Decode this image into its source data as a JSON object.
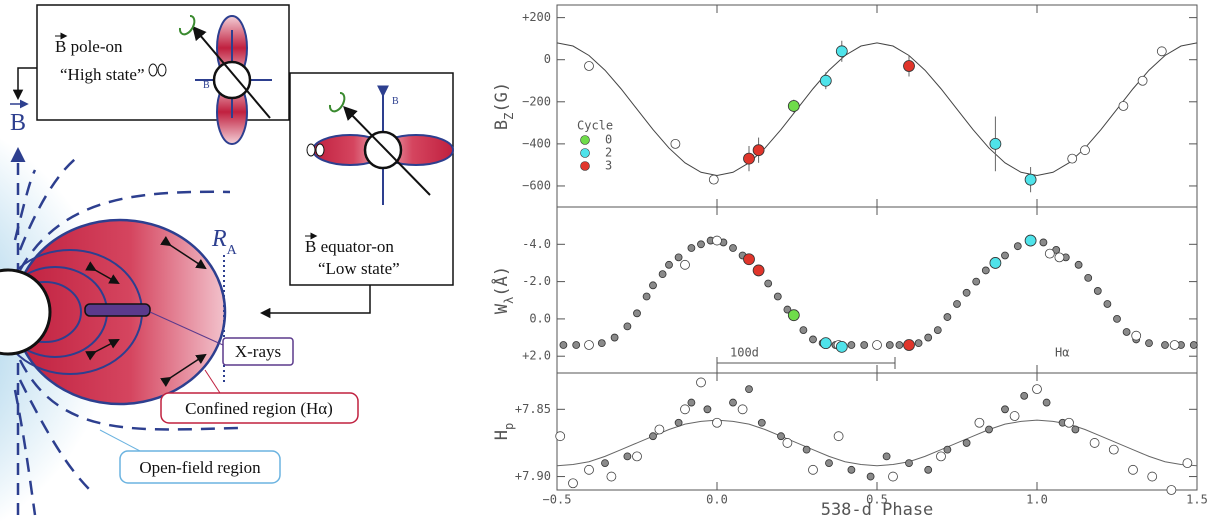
{
  "diagram": {
    "pole_on": {
      "label": "B pole-on",
      "state": "“High state”"
    },
    "equator_on": {
      "label": "B equator-on",
      "state": "“Low state”"
    },
    "field_symbol": "B",
    "alfven_radius": {
      "symbol": "R",
      "sub": "A"
    },
    "xrays": "X-rays",
    "confined": "Confined region (Hα)",
    "open_field": "Open-field region"
  },
  "chart_data": [
    {
      "type": "scatter",
      "ylabel": [
        "B",
        "Z",
        "(G)"
      ],
      "xlim": [
        -0.5,
        1.5
      ],
      "xticks": [
        -0.5,
        0,
        0.5,
        1,
        1.5
      ],
      "ylim": [
        -700,
        260
      ],
      "yticks": [
        {
          "value": 200,
          "label": "+200"
        },
        {
          "value": 0,
          "label": "0"
        },
        {
          "value": -200,
          "label": "−200"
        },
        {
          "value": -400,
          "label": "−400"
        },
        {
          "value": -600,
          "label": "−600"
        }
      ],
      "legend": "center left",
      "legend_title": "Cycle",
      "series": [
        {
          "style": "line",
          "color": "#444444",
          "x": [
            -0.5,
            -0.45,
            -0.4,
            -0.35,
            -0.3,
            -0.25,
            -0.2,
            -0.15,
            -0.1,
            -0.05,
            0,
            0.05,
            0.1,
            0.15,
            0.2,
            0.25,
            0.3,
            0.35,
            0.4,
            0.45,
            0.5,
            0.55,
            0.6,
            0.65,
            0.7,
            0.75,
            0.8,
            0.85,
            0.9,
            0.95,
            1,
            1.05,
            1.1,
            1.15,
            1.2,
            1.25,
            1.3,
            1.35,
            1.4,
            1.45,
            1.5
          ],
          "values": [
            80,
            65,
            20,
            -50,
            -138,
            -235,
            -332,
            -420,
            -490,
            -535,
            -550,
            -535,
            -490,
            -420,
            -332,
            -235,
            -138,
            -50,
            20,
            65,
            80,
            65,
            20,
            -50,
            -138,
            -235,
            -332,
            -420,
            -490,
            -535,
            -550,
            -535,
            -490,
            -420,
            -332,
            -235,
            -138,
            -50,
            20,
            65,
            80
          ]
        },
        {
          "style": "open",
          "color": "#ffffff",
          "x": [
            -0.4,
            -0.13,
            -0.01,
            1.11,
            1.15,
            1.27,
            1.33,
            1.39
          ],
          "values": [
            -30,
            -400,
            -570,
            -470,
            -430,
            -220,
            -100,
            40
          ]
        },
        {
          "name": "0",
          "style": "filled",
          "color": "#6fdc4a",
          "x": [
            0.24
          ],
          "values": [
            -220
          ],
          "errors": [
            30
          ]
        },
        {
          "name": "2",
          "style": "filled",
          "color": "#4fe3ea",
          "x": [
            0.34,
            0.39,
            0.87,
            0.98
          ],
          "values": [
            -100,
            40,
            -400,
            -570
          ],
          "errors": [
            40,
            50,
            130,
            60
          ]
        },
        {
          "name": "3",
          "style": "filled",
          "color": "#e0352b",
          "x": [
            0.1,
            0.13,
            0.6
          ],
          "values": [
            -470,
            -430,
            -30
          ],
          "errors": [
            60,
            60,
            50
          ]
        }
      ]
    },
    {
      "type": "scatter",
      "ylabel": [
        "W",
        "λ",
        "(Å)"
      ],
      "xlim": [
        -0.5,
        1.5
      ],
      "xticks": [
        -0.5,
        0,
        0.5,
        1,
        1.5
      ],
      "ylim": [
        2.9,
        -6.0
      ],
      "yticks": [
        {
          "value": -4,
          "label": "-4.0"
        },
        {
          "value": -2,
          "label": "-2.0"
        },
        {
          "value": 0,
          "label": "0.0"
        },
        {
          "value": 2,
          "label": "+2.0"
        }
      ],
      "annotations": [
        "100d",
        "Hα"
      ],
      "series": [
        {
          "style": "filled",
          "color": "#8a8a8a",
          "x": [
            -0.48,
            -0.44,
            -0.4,
            -0.36,
            -0.32,
            -0.28,
            -0.25,
            -0.22,
            -0.2,
            -0.17,
            -0.15,
            -0.12,
            -0.08,
            -0.05,
            -0.02,
            0.02,
            0.05,
            0.08,
            0.16,
            0.19,
            0.22,
            0.27,
            0.3,
            0.33,
            0.37,
            0.42,
            0.46,
            0.5,
            0.54,
            0.57,
            0.63,
            0.66,
            0.69,
            0.72,
            0.75,
            0.78,
            0.81,
            0.84,
            0.9,
            0.94,
            1.02,
            1.06,
            1.09,
            1.13,
            1.16,
            1.19,
            1.22,
            1.25,
            1.28,
            1.31,
            1.35,
            1.4,
            1.45,
            1.49
          ],
          "values": [
            1.4,
            1.4,
            1.4,
            1.3,
            1.0,
            0.4,
            -0.3,
            -1.2,
            -1.8,
            -2.4,
            -2.9,
            -3.3,
            -3.8,
            -4.0,
            -4.2,
            -4.1,
            -3.8,
            -3.4,
            -1.9,
            -1.2,
            -0.5,
            0.6,
            1.1,
            1.3,
            1.4,
            1.4,
            1.4,
            1.4,
            1.4,
            1.4,
            1.3,
            1.0,
            0.6,
            -0.1,
            -0.8,
            -1.4,
            -2.0,
            -2.6,
            -3.4,
            -3.9,
            -4.1,
            -3.7,
            -3.3,
            -2.9,
            -2.2,
            -1.5,
            -0.8,
            0.0,
            0.7,
            1.1,
            1.3,
            1.4,
            1.4,
            1.4
          ]
        },
        {
          "style": "open",
          "color": "#ffffff",
          "x": [
            -0.4,
            -0.1,
            0.0,
            0.38,
            0.5,
            1.04,
            1.07,
            1.31,
            1.43
          ],
          "values": [
            1.4,
            -2.9,
            -4.2,
            1.4,
            1.4,
            -3.5,
            -3.3,
            0.9,
            1.4
          ]
        },
        {
          "style": "filled",
          "color": "#6fdc4a",
          "x": [
            0.24
          ],
          "values": [
            -0.2
          ]
        },
        {
          "style": "filled",
          "color": "#4fe3ea",
          "x": [
            0.34,
            0.39,
            0.87,
            0.98
          ],
          "values": [
            1.3,
            1.5,
            -3.0,
            -4.2
          ]
        },
        {
          "style": "filled",
          "color": "#e0352b",
          "x": [
            0.1,
            0.13,
            0.6
          ],
          "values": [
            -3.2,
            -2.6,
            1.4
          ]
        }
      ]
    },
    {
      "type": "scatter",
      "ylabel": [
        "H",
        "p",
        ""
      ],
      "xlabel": "538-d Phase",
      "xlim": [
        -0.5,
        1.5
      ],
      "xticks": [
        {
          "value": -0.5,
          "label": "−0.5"
        },
        {
          "value": 0,
          "label": "0.0"
        },
        {
          "value": 0.5,
          "label": "0.5"
        },
        {
          "value": 1,
          "label": "1.0"
        },
        {
          "value": 1.5,
          "label": "1.5"
        }
      ],
      "ylim": [
        7.91,
        7.823
      ],
      "yticks": [
        {
          "value": 7.85,
          "label": "+7.85"
        },
        {
          "value": 7.9,
          "label": "+7.90"
        }
      ],
      "series": [
        {
          "style": "line",
          "color": "#666666",
          "x": [
            -0.5,
            -0.45,
            -0.4,
            -0.35,
            -0.3,
            -0.25,
            -0.2,
            -0.15,
            -0.1,
            -0.05,
            0,
            0.05,
            0.1,
            0.15,
            0.2,
            0.25,
            0.3,
            0.35,
            0.4,
            0.45,
            0.5,
            0.55,
            0.6,
            0.65,
            0.7,
            0.75,
            0.8,
            0.85,
            0.9,
            0.95,
            1,
            1.05,
            1.1,
            1.15,
            1.2,
            1.25,
            1.3,
            1.35,
            1.4,
            1.45,
            1.5
          ],
          "values": [
            7.892,
            7.891,
            7.889,
            7.885,
            7.88,
            7.875,
            7.87,
            7.865,
            7.861,
            7.859,
            7.858,
            7.859,
            7.861,
            7.865,
            7.87,
            7.875,
            7.88,
            7.885,
            7.889,
            7.891,
            7.892,
            7.891,
            7.889,
            7.885,
            7.88,
            7.875,
            7.87,
            7.865,
            7.861,
            7.859,
            7.858,
            7.859,
            7.861,
            7.865,
            7.87,
            7.875,
            7.88,
            7.885,
            7.889,
            7.891,
            7.892
          ]
        },
        {
          "style": "filled",
          "color": "#8a8a8a",
          "x": [
            -0.35,
            -0.28,
            -0.2,
            -0.12,
            -0.08,
            -0.03,
            0.05,
            0.1,
            0.14,
            0.2,
            0.28,
            0.35,
            0.42,
            0.48,
            0.53,
            0.6,
            0.66,
            0.72,
            0.78,
            0.85,
            0.9,
            0.96,
            1.03,
            1.08,
            1.12
          ],
          "values": [
            7.89,
            7.885,
            7.87,
            7.86,
            7.845,
            7.85,
            7.845,
            7.835,
            7.86,
            7.87,
            7.88,
            7.89,
            7.895,
            7.9,
            7.885,
            7.89,
            7.895,
            7.88,
            7.875,
            7.865,
            7.85,
            7.84,
            7.845,
            7.86,
            7.865
          ]
        },
        {
          "style": "open",
          "color": "#ffffff",
          "x": [
            -0.49,
            -0.45,
            -0.4,
            -0.33,
            -0.25,
            -0.18,
            -0.1,
            -0.05,
            0.0,
            0.08,
            0.22,
            0.3,
            0.38,
            0.55,
            0.7,
            0.82,
            0.93,
            1.0,
            1.1,
            1.18,
            1.24,
            1.3,
            1.36,
            1.42,
            1.47
          ],
          "values": [
            7.87,
            7.905,
            7.895,
            7.9,
            7.885,
            7.865,
            7.85,
            7.83,
            7.86,
            7.85,
            7.875,
            7.895,
            7.87,
            7.9,
            7.885,
            7.86,
            7.855,
            7.835,
            7.86,
            7.875,
            7.88,
            7.895,
            7.9,
            7.91,
            7.89
          ]
        }
      ]
    }
  ]
}
